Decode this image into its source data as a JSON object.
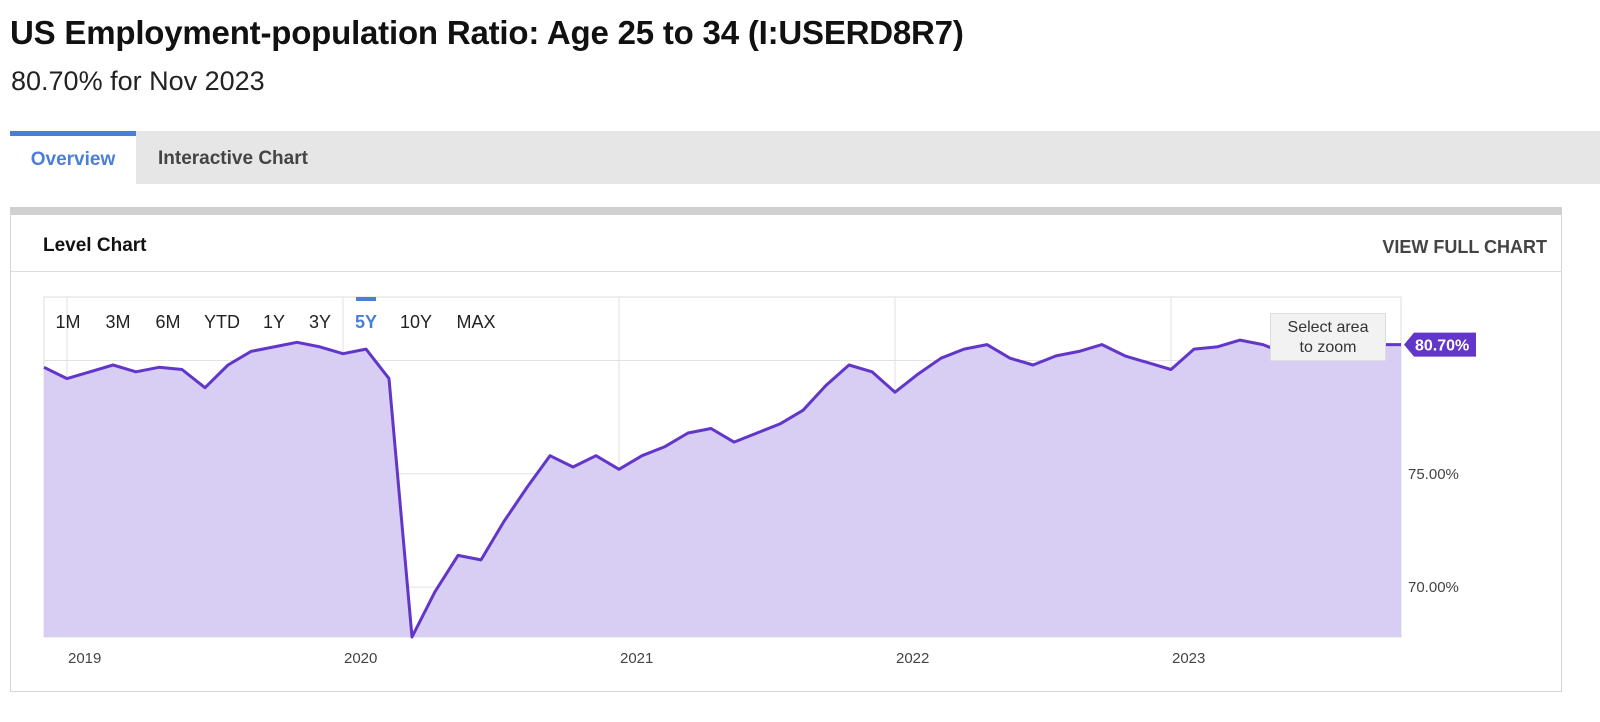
{
  "header": {
    "title": "US Employment-population Ratio: Age 25 to 34 (I:USERD8R7)",
    "subtitle": "80.70% for Nov 2023"
  },
  "tabs": [
    {
      "label": "Overview",
      "active": true
    },
    {
      "label": "Interactive Chart",
      "active": false
    }
  ],
  "card": {
    "title": "Level Chart",
    "full_chart_link": "VIEW FULL CHART"
  },
  "ranges": {
    "options": [
      "1M",
      "3M",
      "6M",
      "YTD",
      "1Y",
      "3Y",
      "5Y",
      "10Y",
      "MAX"
    ],
    "selected": "5Y"
  },
  "zoom_hint": {
    "line1": "Select area",
    "line2": "to zoom"
  },
  "colors": {
    "accent": "#4a7fd8",
    "series_line": "#6236c9",
    "series_fill": "#d8cdf2",
    "grid": "#e2e2e2"
  },
  "chart_data": {
    "type": "area",
    "title": "",
    "xlabel": "",
    "ylabel": "",
    "x_ticks": [
      "2019",
      "2020",
      "2021",
      "2022",
      "2023"
    ],
    "y_ticks": [
      70,
      75
    ],
    "y_tick_labels": [
      "70.00%",
      "75.00%"
    ],
    "ylim": [
      67.8,
      82.8
    ],
    "xlim": [
      "2018-12",
      "2023-11"
    ],
    "grid": true,
    "last_value_label": "80.70%",
    "series": [
      {
        "x": [
          "2018-12",
          "2019-01",
          "2019-02",
          "2019-03",
          "2019-04",
          "2019-05",
          "2019-06",
          "2019-07",
          "2019-08",
          "2019-09",
          "2019-10",
          "2019-11",
          "2019-12",
          "2020-01",
          "2020-02",
          "2020-03",
          "2020-04",
          "2020-05",
          "2020-06",
          "2020-07",
          "2020-08",
          "2020-09",
          "2020-10",
          "2020-11",
          "2020-12",
          "2021-01",
          "2021-02",
          "2021-03",
          "2021-04",
          "2021-05",
          "2021-06",
          "2021-07",
          "2021-08",
          "2021-09",
          "2021-10",
          "2021-11",
          "2021-12",
          "2022-01",
          "2022-02",
          "2022-03",
          "2022-04",
          "2022-05",
          "2022-06",
          "2022-07",
          "2022-08",
          "2022-09",
          "2022-10",
          "2022-11",
          "2022-12",
          "2023-01",
          "2023-02",
          "2023-03",
          "2023-04",
          "2023-05",
          "2023-06",
          "2023-07",
          "2023-08",
          "2023-09",
          "2023-10",
          "2023-11"
        ],
        "values": [
          79.7,
          79.2,
          79.5,
          79.8,
          79.5,
          79.7,
          79.6,
          78.8,
          79.8,
          80.4,
          80.6,
          80.8,
          80.6,
          80.3,
          80.5,
          79.2,
          67.8,
          69.8,
          71.4,
          71.2,
          72.9,
          74.4,
          75.8,
          75.3,
          75.8,
          75.2,
          75.8,
          76.2,
          76.8,
          77.0,
          76.4,
          76.8,
          77.2,
          77.8,
          78.9,
          79.8,
          79.5,
          78.6,
          79.4,
          80.1,
          80.5,
          80.7,
          80.1,
          79.8,
          80.2,
          80.4,
          80.7,
          80.2,
          79.9,
          79.6,
          80.5,
          80.6,
          80.9,
          80.7,
          80.3,
          80.9,
          80.5,
          80.8,
          80.7,
          80.7
        ]
      }
    ]
  }
}
